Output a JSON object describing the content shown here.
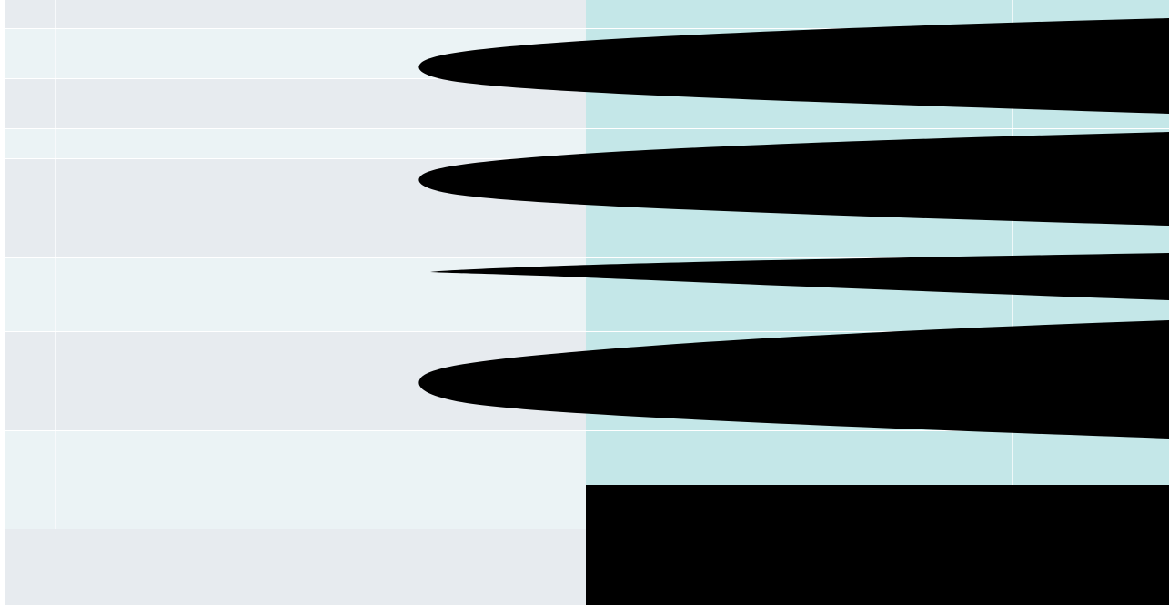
{
  "colors": {
    "page_background": "#ffffff",
    "row_shade_a": "#e7ebef",
    "row_shade_b": "#ebf3f5",
    "teal_fill": "#c4e7e8",
    "redaction": "#000000"
  },
  "left_table": {
    "rows": [
      {
        "shade": "a",
        "cells": [
          "",
          ""
        ]
      },
      {
        "shade": "b",
        "cells": [
          "",
          ""
        ]
      },
      {
        "shade": "a",
        "cells": [
          "",
          ""
        ]
      },
      {
        "shade": "b",
        "cells": [
          "",
          ""
        ]
      },
      {
        "shade": "a",
        "cells": [
          "",
          ""
        ]
      },
      {
        "shade": "b",
        "cells": [
          "",
          ""
        ]
      },
      {
        "shade": "a",
        "cells": [
          "",
          ""
        ]
      },
      {
        "shade": "b",
        "cells": [
          "",
          ""
        ]
      },
      {
        "shade": "a",
        "cells": [
          ""
        ]
      }
    ]
  },
  "right_table": {
    "rows": [
      {
        "cells": [
          "",
          ""
        ]
      },
      {
        "cells": [
          "",
          ""
        ]
      },
      {
        "cells": [
          "",
          ""
        ]
      },
      {
        "cells": [
          "",
          ""
        ]
      },
      {
        "cells": [
          "",
          ""
        ]
      },
      {
        "cells": [
          "",
          ""
        ]
      },
      {
        "cells": [
          "",
          ""
        ]
      },
      {
        "cells": [
          "",
          ""
        ]
      }
    ]
  },
  "redactions": {
    "count": 5
  }
}
